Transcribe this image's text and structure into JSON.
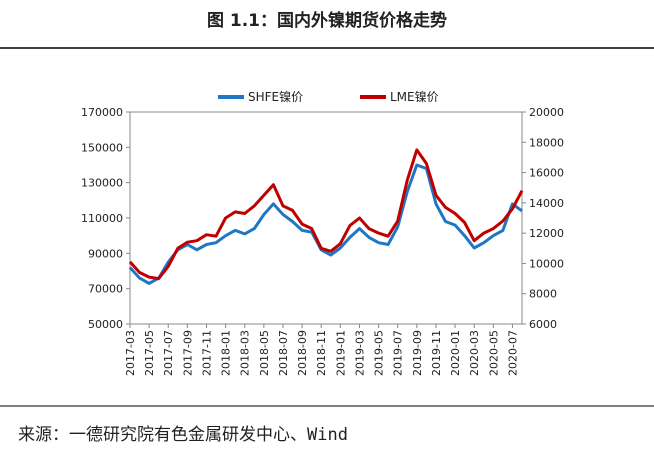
{
  "chart_data": {
    "type": "line",
    "title": "图 1.1：国内外镍期货价格走势",
    "source": "来源：一德研究院有色金属研发中心、Wind",
    "x": [
      "2017-03",
      "2017-04",
      "2017-05",
      "2017-06",
      "2017-07",
      "2017-08",
      "2017-09",
      "2017-10",
      "2017-11",
      "2017-12",
      "2018-01",
      "2018-02",
      "2018-03",
      "2018-04",
      "2018-05",
      "2018-06",
      "2018-07",
      "2018-08",
      "2018-09",
      "2018-10",
      "2018-11",
      "2018-12",
      "2019-01",
      "2019-02",
      "2019-03",
      "2019-04",
      "2019-05",
      "2019-06",
      "2019-07",
      "2019-08",
      "2019-09",
      "2019-10",
      "2019-11",
      "2019-12",
      "2020-01",
      "2020-02",
      "2020-03",
      "2020-04",
      "2020-05",
      "2020-06",
      "2020-07",
      "2020-08"
    ],
    "xticks": [
      "2017-03",
      "2017-05",
      "2017-07",
      "2017-09",
      "2017-11",
      "2018-01",
      "2018-03",
      "2018-05",
      "2018-07",
      "2018-09",
      "2018-11",
      "2019-01",
      "2019-03",
      "2019-05",
      "2019-07",
      "2019-09",
      "2019-11",
      "2020-01",
      "2020-03",
      "2020-05",
      "2020-07"
    ],
    "series": [
      {
        "name": "SHFE镍价",
        "color": "#1f77c4",
        "axis": "y",
        "values": [
          82000,
          76000,
          73000,
          76000,
          85000,
          92000,
          95000,
          92000,
          95000,
          96000,
          100000,
          103000,
          101000,
          104000,
          112000,
          118000,
          112000,
          108000,
          103000,
          102000,
          92000,
          89000,
          93000,
          99000,
          104000,
          99000,
          96000,
          95000,
          105000,
          125000,
          140000,
          138000,
          118000,
          108000,
          106000,
          100000,
          93000,
          96000,
          100000,
          103000,
          118000,
          114000
        ]
      },
      {
        "name": "LME镍价",
        "color": "#c00000",
        "axis": "y2",
        "values": [
          10100,
          9400,
          9100,
          9000,
          9800,
          11000,
          11400,
          11500,
          11900,
          11800,
          13000,
          13400,
          13300,
          13800,
          14500,
          15200,
          13800,
          13500,
          12600,
          12300,
          11000,
          10800,
          11300,
          12500,
          13000,
          12300,
          12000,
          11800,
          12800,
          15500,
          17500,
          16600,
          14500,
          13700,
          13300,
          12700,
          11500,
          12000,
          12300,
          12800,
          13600,
          14800
        ]
      }
    ],
    "ylim": [
      50000,
      170000
    ],
    "yticks": [
      50000,
      70000,
      90000,
      110000,
      130000,
      150000,
      170000
    ],
    "y2lim": [
      6000,
      20000
    ],
    "y2ticks": [
      6000,
      8000,
      10000,
      12000,
      14000,
      16000,
      18000,
      20000
    ]
  }
}
